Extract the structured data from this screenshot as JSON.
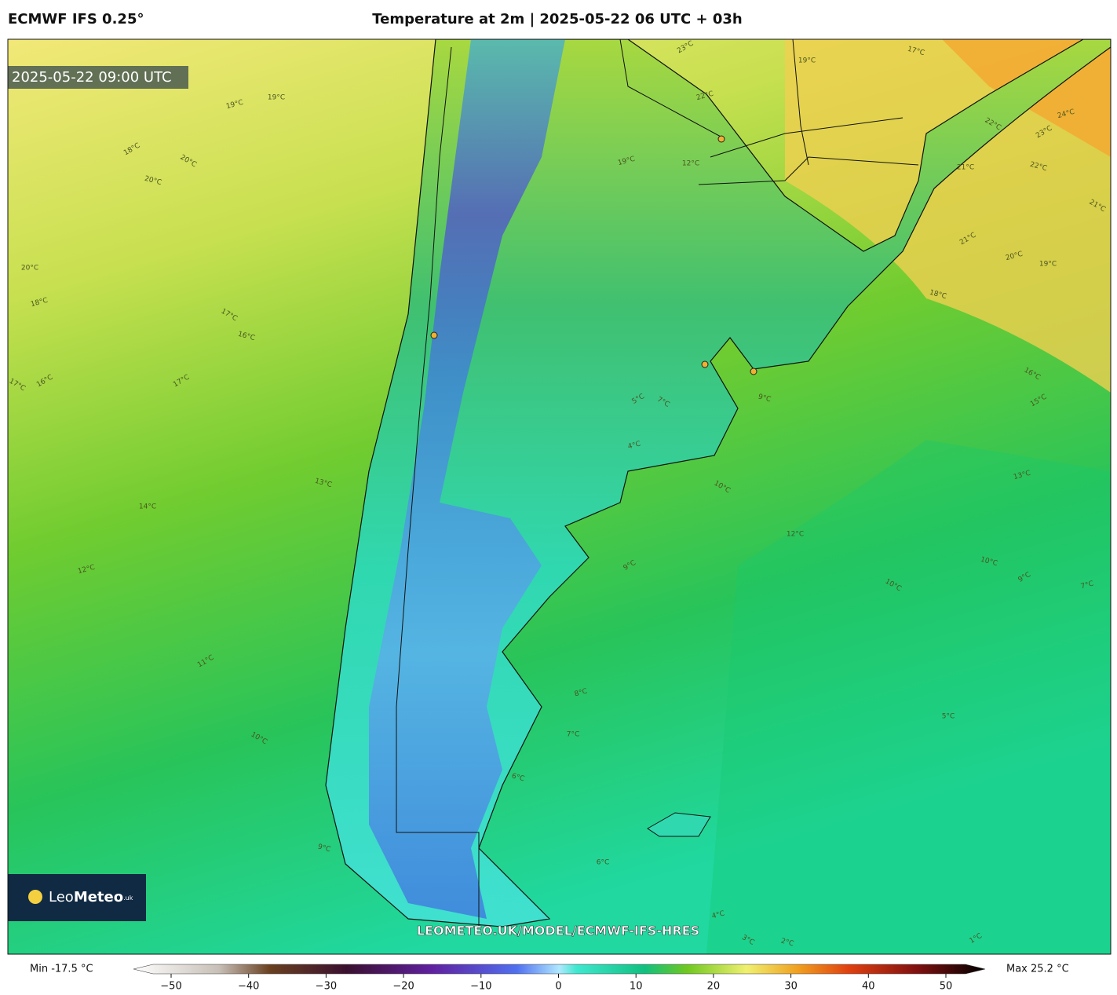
{
  "header": {
    "model": "ECMWF IFS 0.25°",
    "title": "Temperature at 2m | 2025-05-22 06 UTC + 03h"
  },
  "map": {
    "valid_time": "2025-05-22 09:00 UTC",
    "watermark": "LEOMETEO.UK/MODEL/ECMWF-IFS-HRES",
    "logo": {
      "leo": "Leo",
      "meteo": "Meteo",
      "suffix": ".uk"
    },
    "contour_labels": [
      "23°C",
      "22°C",
      "19°C",
      "17°C",
      "22°C",
      "23°C",
      "24°C",
      "21°C",
      "22°C",
      "21°C",
      "21°C",
      "20°C",
      "19°C",
      "18°C",
      "16°C",
      "15°C",
      "13°C",
      "12°C",
      "10°C",
      "10°C",
      "9°C",
      "7°C",
      "5°C",
      "2°C",
      "3°C",
      "1°C",
      "4°C",
      "6°C",
      "9°C",
      "10°C",
      "11°C",
      "12°C",
      "14°C",
      "13°C",
      "17°C",
      "16°C",
      "18°C",
      "20°C",
      "16°C",
      "17°C",
      "17°C",
      "19°C",
      "19°C",
      "20°C",
      "20°C",
      "18°C",
      "19°C",
      "12°C",
      "9°C",
      "10°C",
      "9°C",
      "8°C",
      "7°C",
      "6°C",
      "7°C",
      "5°C",
      "4°C"
    ]
  },
  "colorbar": {
    "min_label": "Min -17.5 °C",
    "max_label": "Max 25.2 °C",
    "ticks": [
      {
        "value": -50,
        "label": "−50"
      },
      {
        "value": -40,
        "label": "−40"
      },
      {
        "value": -30,
        "label": "−30"
      },
      {
        "value": -20,
        "label": "−20"
      },
      {
        "value": -10,
        "label": "−10"
      },
      0,
      10,
      20,
      30,
      40,
      50
    ]
  }
}
